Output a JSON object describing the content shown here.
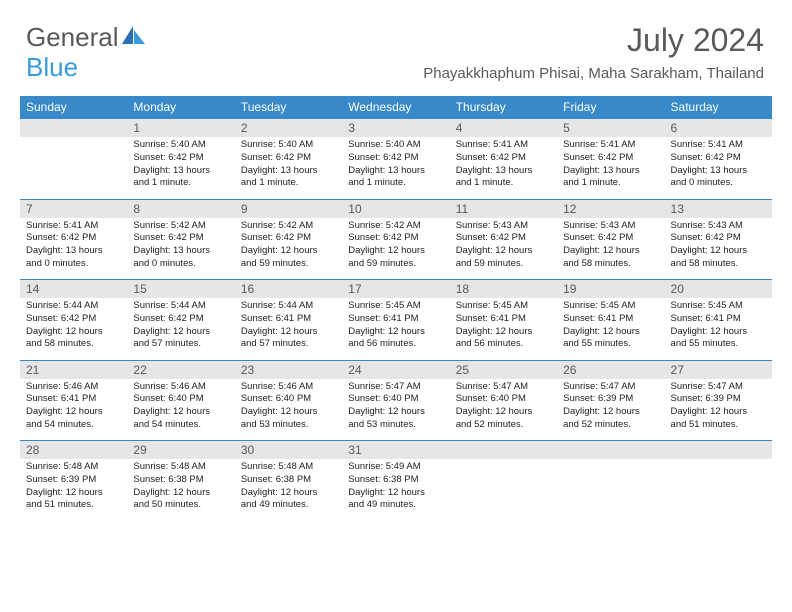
{
  "brand": {
    "name1": "General",
    "name2": "Blue"
  },
  "title": "July 2024",
  "location": "Phayakkhaphum Phisai, Maha Sarakham, Thailand",
  "colors": {
    "header_bg": "#3789c9",
    "header_text": "#ffffff",
    "daynum_bg": "#e6e6e6",
    "text_gray": "#595959",
    "body_text": "#222222",
    "row_divider": "#3789c9"
  },
  "fonts": {
    "title_size": 32,
    "location_size": 15,
    "dow_size": 12,
    "daynum_size": 12,
    "detail_size": 9.5
  },
  "days_of_week": [
    "Sunday",
    "Monday",
    "Tuesday",
    "Wednesday",
    "Thursday",
    "Friday",
    "Saturday"
  ],
  "weeks": [
    {
      "nums": [
        "",
        "1",
        "2",
        "3",
        "4",
        "5",
        "6"
      ],
      "cells": [
        null,
        {
          "sunrise": "Sunrise: 5:40 AM",
          "sunset": "Sunset: 6:42 PM",
          "day1": "Daylight: 13 hours",
          "day2": "and 1 minute."
        },
        {
          "sunrise": "Sunrise: 5:40 AM",
          "sunset": "Sunset: 6:42 PM",
          "day1": "Daylight: 13 hours",
          "day2": "and 1 minute."
        },
        {
          "sunrise": "Sunrise: 5:40 AM",
          "sunset": "Sunset: 6:42 PM",
          "day1": "Daylight: 13 hours",
          "day2": "and 1 minute."
        },
        {
          "sunrise": "Sunrise: 5:41 AM",
          "sunset": "Sunset: 6:42 PM",
          "day1": "Daylight: 13 hours",
          "day2": "and 1 minute."
        },
        {
          "sunrise": "Sunrise: 5:41 AM",
          "sunset": "Sunset: 6:42 PM",
          "day1": "Daylight: 13 hours",
          "day2": "and 1 minute."
        },
        {
          "sunrise": "Sunrise: 5:41 AM",
          "sunset": "Sunset: 6:42 PM",
          "day1": "Daylight: 13 hours",
          "day2": "and 0 minutes."
        }
      ]
    },
    {
      "nums": [
        "7",
        "8",
        "9",
        "10",
        "11",
        "12",
        "13"
      ],
      "cells": [
        {
          "sunrise": "Sunrise: 5:41 AM",
          "sunset": "Sunset: 6:42 PM",
          "day1": "Daylight: 13 hours",
          "day2": "and 0 minutes."
        },
        {
          "sunrise": "Sunrise: 5:42 AM",
          "sunset": "Sunset: 6:42 PM",
          "day1": "Daylight: 13 hours",
          "day2": "and 0 minutes."
        },
        {
          "sunrise": "Sunrise: 5:42 AM",
          "sunset": "Sunset: 6:42 PM",
          "day1": "Daylight: 12 hours",
          "day2": "and 59 minutes."
        },
        {
          "sunrise": "Sunrise: 5:42 AM",
          "sunset": "Sunset: 6:42 PM",
          "day1": "Daylight: 12 hours",
          "day2": "and 59 minutes."
        },
        {
          "sunrise": "Sunrise: 5:43 AM",
          "sunset": "Sunset: 6:42 PM",
          "day1": "Daylight: 12 hours",
          "day2": "and 59 minutes."
        },
        {
          "sunrise": "Sunrise: 5:43 AM",
          "sunset": "Sunset: 6:42 PM",
          "day1": "Daylight: 12 hours",
          "day2": "and 58 minutes."
        },
        {
          "sunrise": "Sunrise: 5:43 AM",
          "sunset": "Sunset: 6:42 PM",
          "day1": "Daylight: 12 hours",
          "day2": "and 58 minutes."
        }
      ]
    },
    {
      "nums": [
        "14",
        "15",
        "16",
        "17",
        "18",
        "19",
        "20"
      ],
      "cells": [
        {
          "sunrise": "Sunrise: 5:44 AM",
          "sunset": "Sunset: 6:42 PM",
          "day1": "Daylight: 12 hours",
          "day2": "and 58 minutes."
        },
        {
          "sunrise": "Sunrise: 5:44 AM",
          "sunset": "Sunset: 6:42 PM",
          "day1": "Daylight: 12 hours",
          "day2": "and 57 minutes."
        },
        {
          "sunrise": "Sunrise: 5:44 AM",
          "sunset": "Sunset: 6:41 PM",
          "day1": "Daylight: 12 hours",
          "day2": "and 57 minutes."
        },
        {
          "sunrise": "Sunrise: 5:45 AM",
          "sunset": "Sunset: 6:41 PM",
          "day1": "Daylight: 12 hours",
          "day2": "and 56 minutes."
        },
        {
          "sunrise": "Sunrise: 5:45 AM",
          "sunset": "Sunset: 6:41 PM",
          "day1": "Daylight: 12 hours",
          "day2": "and 56 minutes."
        },
        {
          "sunrise": "Sunrise: 5:45 AM",
          "sunset": "Sunset: 6:41 PM",
          "day1": "Daylight: 12 hours",
          "day2": "and 55 minutes."
        },
        {
          "sunrise": "Sunrise: 5:45 AM",
          "sunset": "Sunset: 6:41 PM",
          "day1": "Daylight: 12 hours",
          "day2": "and 55 minutes."
        }
      ]
    },
    {
      "nums": [
        "21",
        "22",
        "23",
        "24",
        "25",
        "26",
        "27"
      ],
      "cells": [
        {
          "sunrise": "Sunrise: 5:46 AM",
          "sunset": "Sunset: 6:41 PM",
          "day1": "Daylight: 12 hours",
          "day2": "and 54 minutes."
        },
        {
          "sunrise": "Sunrise: 5:46 AM",
          "sunset": "Sunset: 6:40 PM",
          "day1": "Daylight: 12 hours",
          "day2": "and 54 minutes."
        },
        {
          "sunrise": "Sunrise: 5:46 AM",
          "sunset": "Sunset: 6:40 PM",
          "day1": "Daylight: 12 hours",
          "day2": "and 53 minutes."
        },
        {
          "sunrise": "Sunrise: 5:47 AM",
          "sunset": "Sunset: 6:40 PM",
          "day1": "Daylight: 12 hours",
          "day2": "and 53 minutes."
        },
        {
          "sunrise": "Sunrise: 5:47 AM",
          "sunset": "Sunset: 6:40 PM",
          "day1": "Daylight: 12 hours",
          "day2": "and 52 minutes."
        },
        {
          "sunrise": "Sunrise: 5:47 AM",
          "sunset": "Sunset: 6:39 PM",
          "day1": "Daylight: 12 hours",
          "day2": "and 52 minutes."
        },
        {
          "sunrise": "Sunrise: 5:47 AM",
          "sunset": "Sunset: 6:39 PM",
          "day1": "Daylight: 12 hours",
          "day2": "and 51 minutes."
        }
      ]
    },
    {
      "nums": [
        "28",
        "29",
        "30",
        "31",
        "",
        "",
        ""
      ],
      "cells": [
        {
          "sunrise": "Sunrise: 5:48 AM",
          "sunset": "Sunset: 6:39 PM",
          "day1": "Daylight: 12 hours",
          "day2": "and 51 minutes."
        },
        {
          "sunrise": "Sunrise: 5:48 AM",
          "sunset": "Sunset: 6:38 PM",
          "day1": "Daylight: 12 hours",
          "day2": "and 50 minutes."
        },
        {
          "sunrise": "Sunrise: 5:48 AM",
          "sunset": "Sunset: 6:38 PM",
          "day1": "Daylight: 12 hours",
          "day2": "and 49 minutes."
        },
        {
          "sunrise": "Sunrise: 5:49 AM",
          "sunset": "Sunset: 6:38 PM",
          "day1": "Daylight: 12 hours",
          "day2": "and 49 minutes."
        },
        null,
        null,
        null
      ]
    }
  ]
}
